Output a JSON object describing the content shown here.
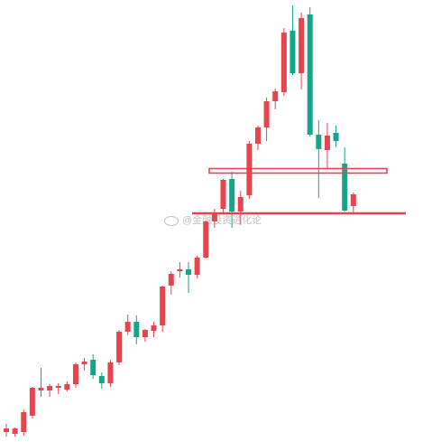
{
  "chart_data": {
    "type": "candlestick",
    "title": "",
    "xlabel": "",
    "ylabel": "",
    "grid": false,
    "legend": "none",
    "colors": {
      "up": "#e8434f",
      "down": "#17a589",
      "level": "#e8434f"
    },
    "ylim": [
      0,
      480
    ],
    "candles": [
      {
        "o": 8,
        "h": 17,
        "l": 3,
        "c": 12
      },
      {
        "o": 6,
        "h": 13,
        "l": 3,
        "c": 12
      },
      {
        "o": 8,
        "h": 33,
        "l": 4,
        "c": 30
      },
      {
        "o": 26,
        "h": 58,
        "l": 23,
        "c": 57
      },
      {
        "o": 54,
        "h": 79,
        "l": 47,
        "c": 57
      },
      {
        "o": 54,
        "h": 61,
        "l": 47,
        "c": 59
      },
      {
        "o": 57,
        "h": 62,
        "l": 50,
        "c": 59
      },
      {
        "o": 55,
        "h": 64,
        "l": 53,
        "c": 61
      },
      {
        "o": 61,
        "h": 85,
        "l": 57,
        "c": 83
      },
      {
        "o": 83,
        "h": 90,
        "l": 76,
        "c": 86
      },
      {
        "o": 88,
        "h": 94,
        "l": 67,
        "c": 71
      },
      {
        "o": 70,
        "h": 74,
        "l": 56,
        "c": 62
      },
      {
        "o": 62,
        "h": 88,
        "l": 58,
        "c": 85
      },
      {
        "o": 85,
        "h": 121,
        "l": 82,
        "c": 119
      },
      {
        "o": 119,
        "h": 138,
        "l": 115,
        "c": 130
      },
      {
        "o": 130,
        "h": 137,
        "l": 105,
        "c": 113
      },
      {
        "o": 113,
        "h": 122,
        "l": 108,
        "c": 121
      },
      {
        "o": 120,
        "h": 130,
        "l": 113,
        "c": 126
      },
      {
        "o": 126,
        "h": 170,
        "l": 119,
        "c": 169
      },
      {
        "o": 170,
        "h": 186,
        "l": 160,
        "c": 183
      },
      {
        "o": 186,
        "h": 196,
        "l": 179,
        "c": 188
      },
      {
        "o": 188,
        "h": 196,
        "l": 162,
        "c": 182
      },
      {
        "o": 182,
        "h": 203,
        "l": 178,
        "c": 201
      },
      {
        "o": 201,
        "h": 242,
        "l": 200,
        "c": 241
      },
      {
        "o": 241,
        "h": 255,
        "l": 234,
        "c": 250
      },
      {
        "o": 255,
        "h": 288,
        "l": 250,
        "c": 287
      },
      {
        "o": 288,
        "h": 296,
        "l": 234,
        "c": 252
      },
      {
        "o": 252,
        "h": 275,
        "l": 237,
        "c": 268
      },
      {
        "o": 270,
        "h": 330,
        "l": 266,
        "c": 327
      },
      {
        "o": 327,
        "h": 347,
        "l": 320,
        "c": 345
      },
      {
        "o": 345,
        "h": 378,
        "l": 330,
        "c": 374
      },
      {
        "o": 374,
        "h": 388,
        "l": 365,
        "c": 385
      },
      {
        "o": 384,
        "h": 455,
        "l": 380,
        "c": 450
      },
      {
        "o": 452,
        "h": 480,
        "l": 403,
        "c": 405
      },
      {
        "o": 405,
        "h": 472,
        "l": 387,
        "c": 466
      },
      {
        "o": 470,
        "h": 478,
        "l": 335,
        "c": 337
      },
      {
        "o": 337,
        "h": 353,
        "l": 267,
        "c": 321
      },
      {
        "o": 320,
        "h": 350,
        "l": 300,
        "c": 336
      },
      {
        "o": 339,
        "h": 347,
        "l": 323,
        "c": 330
      },
      {
        "o": 305,
        "h": 323,
        "l": 252,
        "c": 253
      },
      {
        "o": 258,
        "h": 273,
        "l": 250,
        "c": 271
      }
    ],
    "levels": [
      {
        "value": 297,
        "style": "double"
      },
      {
        "value": 250,
        "style": "single"
      }
    ]
  },
  "watermark": {
    "text": "@金融投资进化论",
    "logo_icon": "weibo-logo-icon"
  }
}
